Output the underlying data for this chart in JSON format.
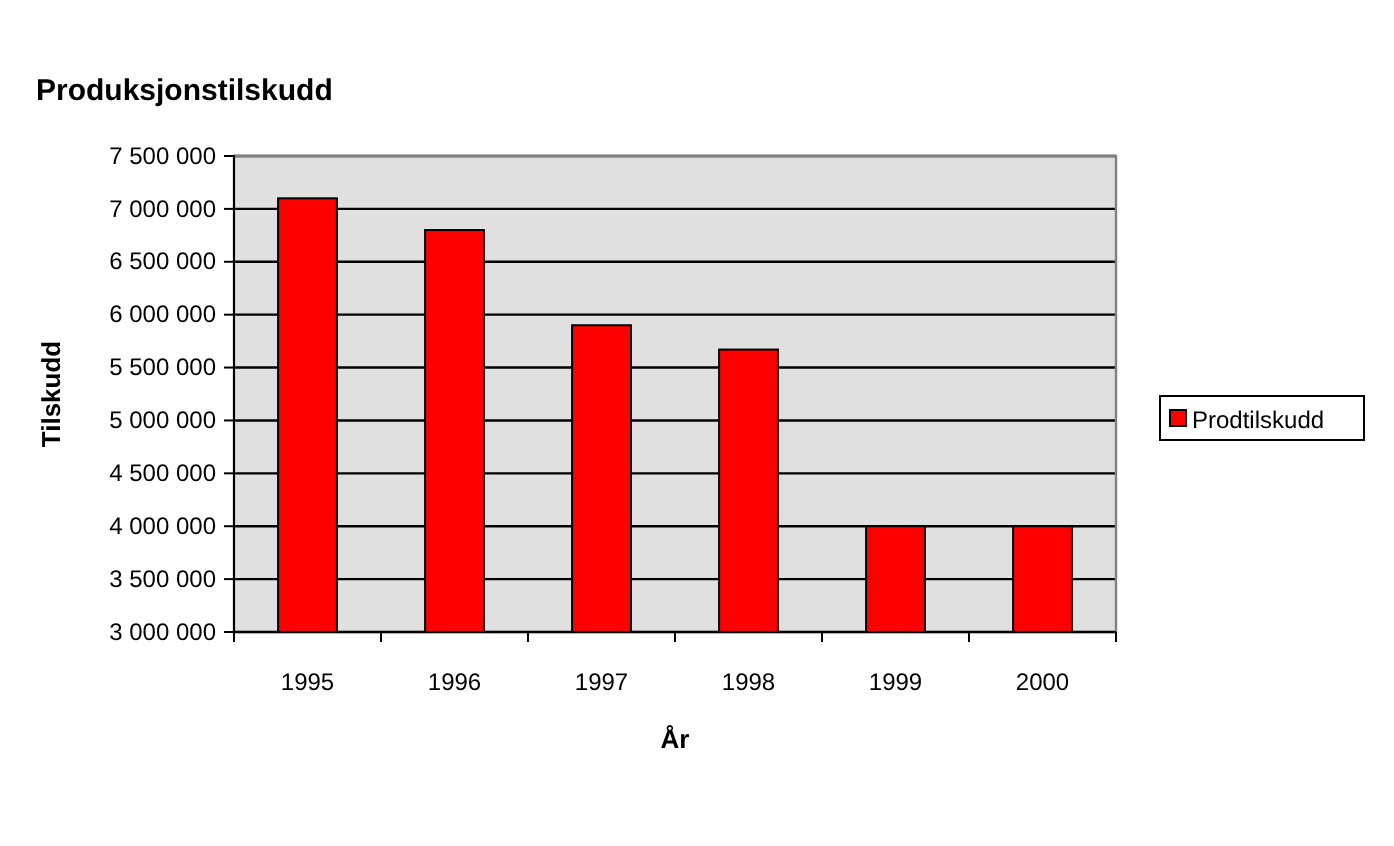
{
  "chart_data": {
    "type": "bar",
    "title": "Produksjonstilskudd",
    "xlabel": "År",
    "ylabel": "Tilskudd",
    "categories": [
      "1995",
      "1996",
      "1997",
      "1998",
      "1999",
      "2000"
    ],
    "series": [
      {
        "name": "Prodtilskudd",
        "color": "#ff0000",
        "values": [
          7100000,
          6800000,
          5900000,
          5670000,
          4000000,
          4000000
        ]
      }
    ],
    "ylim": [
      3000000,
      7500000
    ],
    "yticks": [
      {
        "value": 3000000,
        "label": "3 000 000"
      },
      {
        "value": 3500000,
        "label": "3 500 000"
      },
      {
        "value": 4000000,
        "label": "4 000 000"
      },
      {
        "value": 4500000,
        "label": "4 500 000"
      },
      {
        "value": 5000000,
        "label": "5 000 000"
      },
      {
        "value": 5500000,
        "label": "5 500 000"
      },
      {
        "value": 6000000,
        "label": "6 000 000"
      },
      {
        "value": 6500000,
        "label": "6 500 000"
      },
      {
        "value": 7000000,
        "label": "7 000 000"
      },
      {
        "value": 7500000,
        "label": "7 500 000"
      }
    ],
    "grid": "y",
    "legend": "right"
  }
}
